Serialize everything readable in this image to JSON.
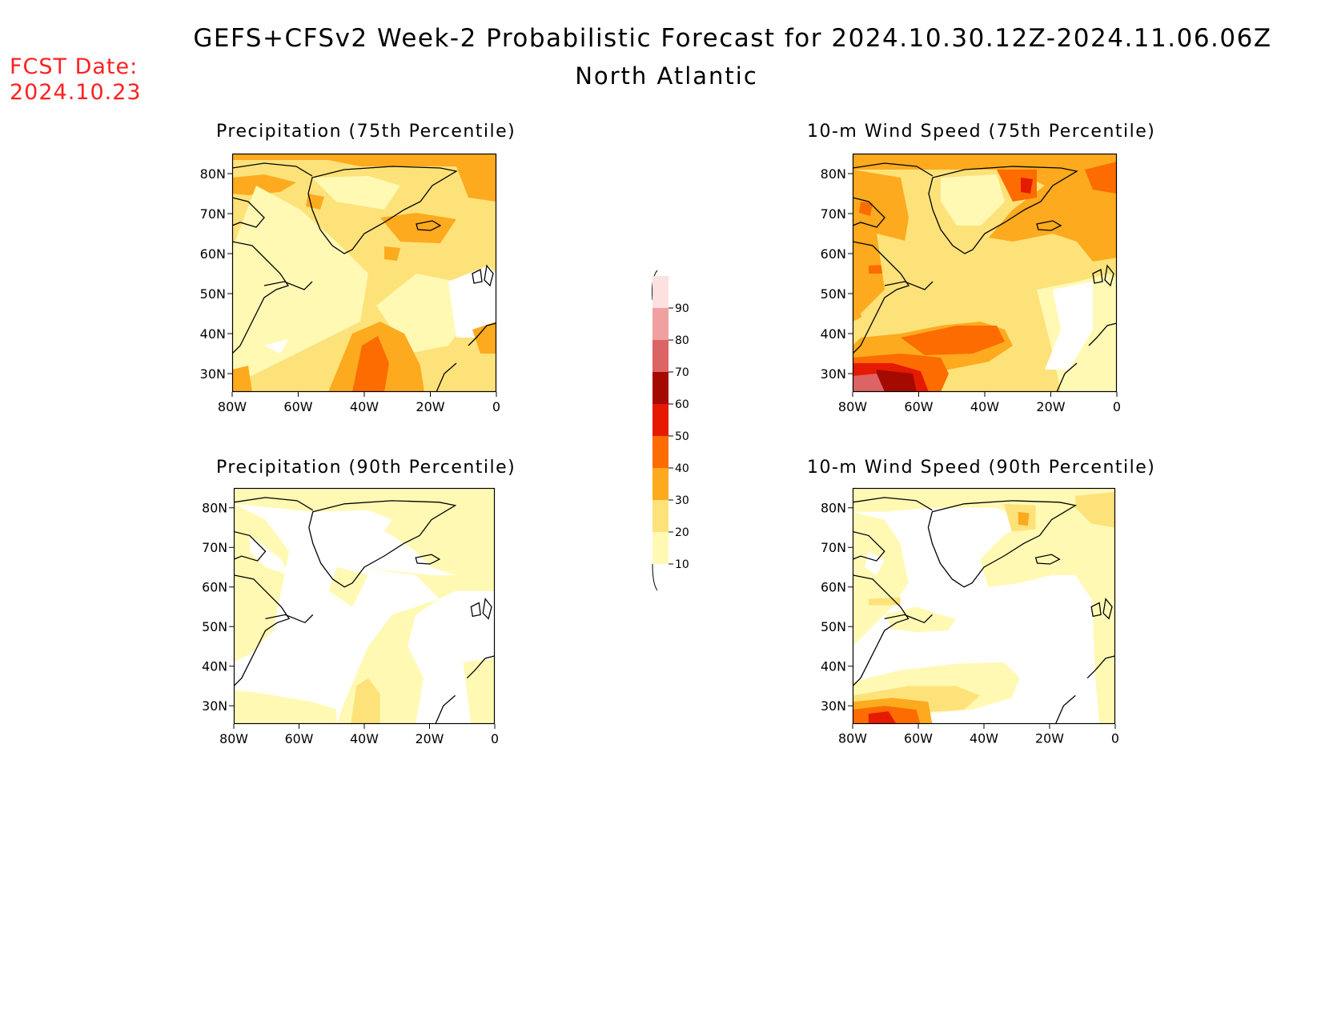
{
  "header": {
    "title": "GEFS+CFSv2 Week-2 Probabilistic Forecast for 2024.10.30.12Z-2024.11.06.06Z",
    "region": "North Atlantic",
    "fcst_date_label": "FCST Date:",
    "fcst_date_value": "2024.10.23"
  },
  "panels": [
    {
      "id": "precip-75",
      "title": "Precipitation (75th Percentile)"
    },
    {
      "id": "wind-75",
      "title": "10-m Wind Speed (75th Percentile)"
    },
    {
      "id": "precip-90",
      "title": "Precipitation (90th Percentile)"
    },
    {
      "id": "wind-90",
      "title": "10-m Wind Speed (90th Percentile)"
    }
  ],
  "axes": {
    "lat_labels": [
      "80N",
      "70N",
      "60N",
      "50N",
      "40N",
      "30N"
    ],
    "lon_labels": [
      "80W",
      "60W",
      "40W",
      "20W",
      "0"
    ]
  },
  "colorbar": {
    "levels": [
      "10",
      "20",
      "30",
      "40",
      "50",
      "60",
      "70",
      "80",
      "90"
    ],
    "colors": [
      "#fff9b4",
      "#fde27a",
      "#fdaa1e",
      "#fd6c00",
      "#e61a00",
      "#a50a00",
      "#dd6464",
      "#f0a0a0",
      "#fde0e0"
    ]
  }
}
